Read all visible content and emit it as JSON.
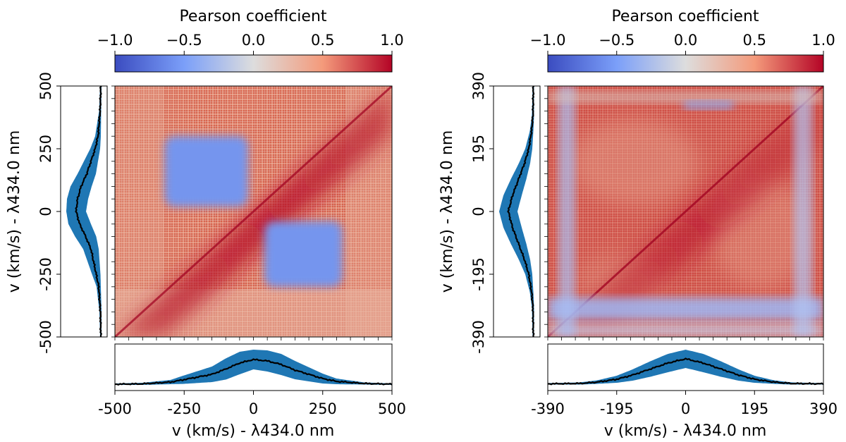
{
  "chart_data": [
    {
      "type": "heatmap",
      "panel": "left",
      "colorbar": {
        "title": "Pearson coefficient",
        "range": [
          -1.0,
          1.0
        ],
        "ticks": [
          "−1.0",
          "−0.5",
          "0.0",
          "0.5",
          "1.0"
        ],
        "colormap": "coolwarm"
      },
      "xlabel": "v (km/s) - λ434.0 nm",
      "ylabel": "v (km/s) - λ434.0 nm",
      "xlim": [
        -500,
        500
      ],
      "ylim": [
        -500,
        500
      ],
      "xticks": [
        "-500",
        "-250",
        "0",
        "250",
        "500"
      ],
      "yticks": [
        "-500",
        "-250",
        "0",
        "250",
        "500"
      ],
      "correlation_blocks": [
        {
          "x": [
            -320,
            -20
          ],
          "y": [
            20,
            300
          ],
          "value": -0.6
        },
        {
          "x": [
            40,
            320
          ],
          "y": [
            -300,
            -40
          ],
          "value": -0.6
        }
      ],
      "profile": {
        "x": [
          -500,
          -400,
          -300,
          -250,
          -150,
          -100,
          -50,
          0,
          50,
          100,
          150,
          200,
          250,
          300,
          400,
          500
        ],
        "mean": [
          0.02,
          0.03,
          0.08,
          0.15,
          0.3,
          0.45,
          0.62,
          0.72,
          0.68,
          0.58,
          0.42,
          0.3,
          0.18,
          0.1,
          0.04,
          0.02
        ],
        "spread": [
          0.02,
          0.03,
          0.06,
          0.12,
          0.22,
          0.3,
          0.32,
          0.28,
          0.3,
          0.3,
          0.26,
          0.2,
          0.14,
          0.08,
          0.03,
          0.02
        ]
      }
    },
    {
      "type": "heatmap",
      "panel": "right",
      "colorbar": {
        "title": "Pearson coefficient",
        "range": [
          -1.0,
          1.0
        ],
        "ticks": [
          "−1.0",
          "−0.5",
          "0.0",
          "0.5",
          "1.0"
        ],
        "colormap": "coolwarm"
      },
      "xlabel": "v (km/s) - λ434.0 nm",
      "ylabel": "v (km/s) - λ434.0 nm",
      "xlim": [
        -390,
        390
      ],
      "ylim": [
        -390,
        390
      ],
      "xticks": [
        "-390",
        "-195",
        "0",
        "195",
        "390"
      ],
      "yticks": [
        "-390",
        "-195",
        "0",
        "195",
        "390"
      ],
      "correlation_blocks": [],
      "profile": {
        "x": [
          -390,
          -300,
          -250,
          -195,
          -150,
          -100,
          -50,
          0,
          50,
          100,
          150,
          195,
          250,
          300,
          390
        ],
        "mean": [
          0.03,
          0.04,
          0.08,
          0.16,
          0.28,
          0.45,
          0.62,
          0.74,
          0.62,
          0.45,
          0.28,
          0.16,
          0.08,
          0.04,
          0.03
        ],
        "spread": [
          0.02,
          0.03,
          0.05,
          0.1,
          0.16,
          0.22,
          0.26,
          0.26,
          0.26,
          0.22,
          0.16,
          0.1,
          0.05,
          0.03,
          0.02
        ]
      }
    }
  ]
}
